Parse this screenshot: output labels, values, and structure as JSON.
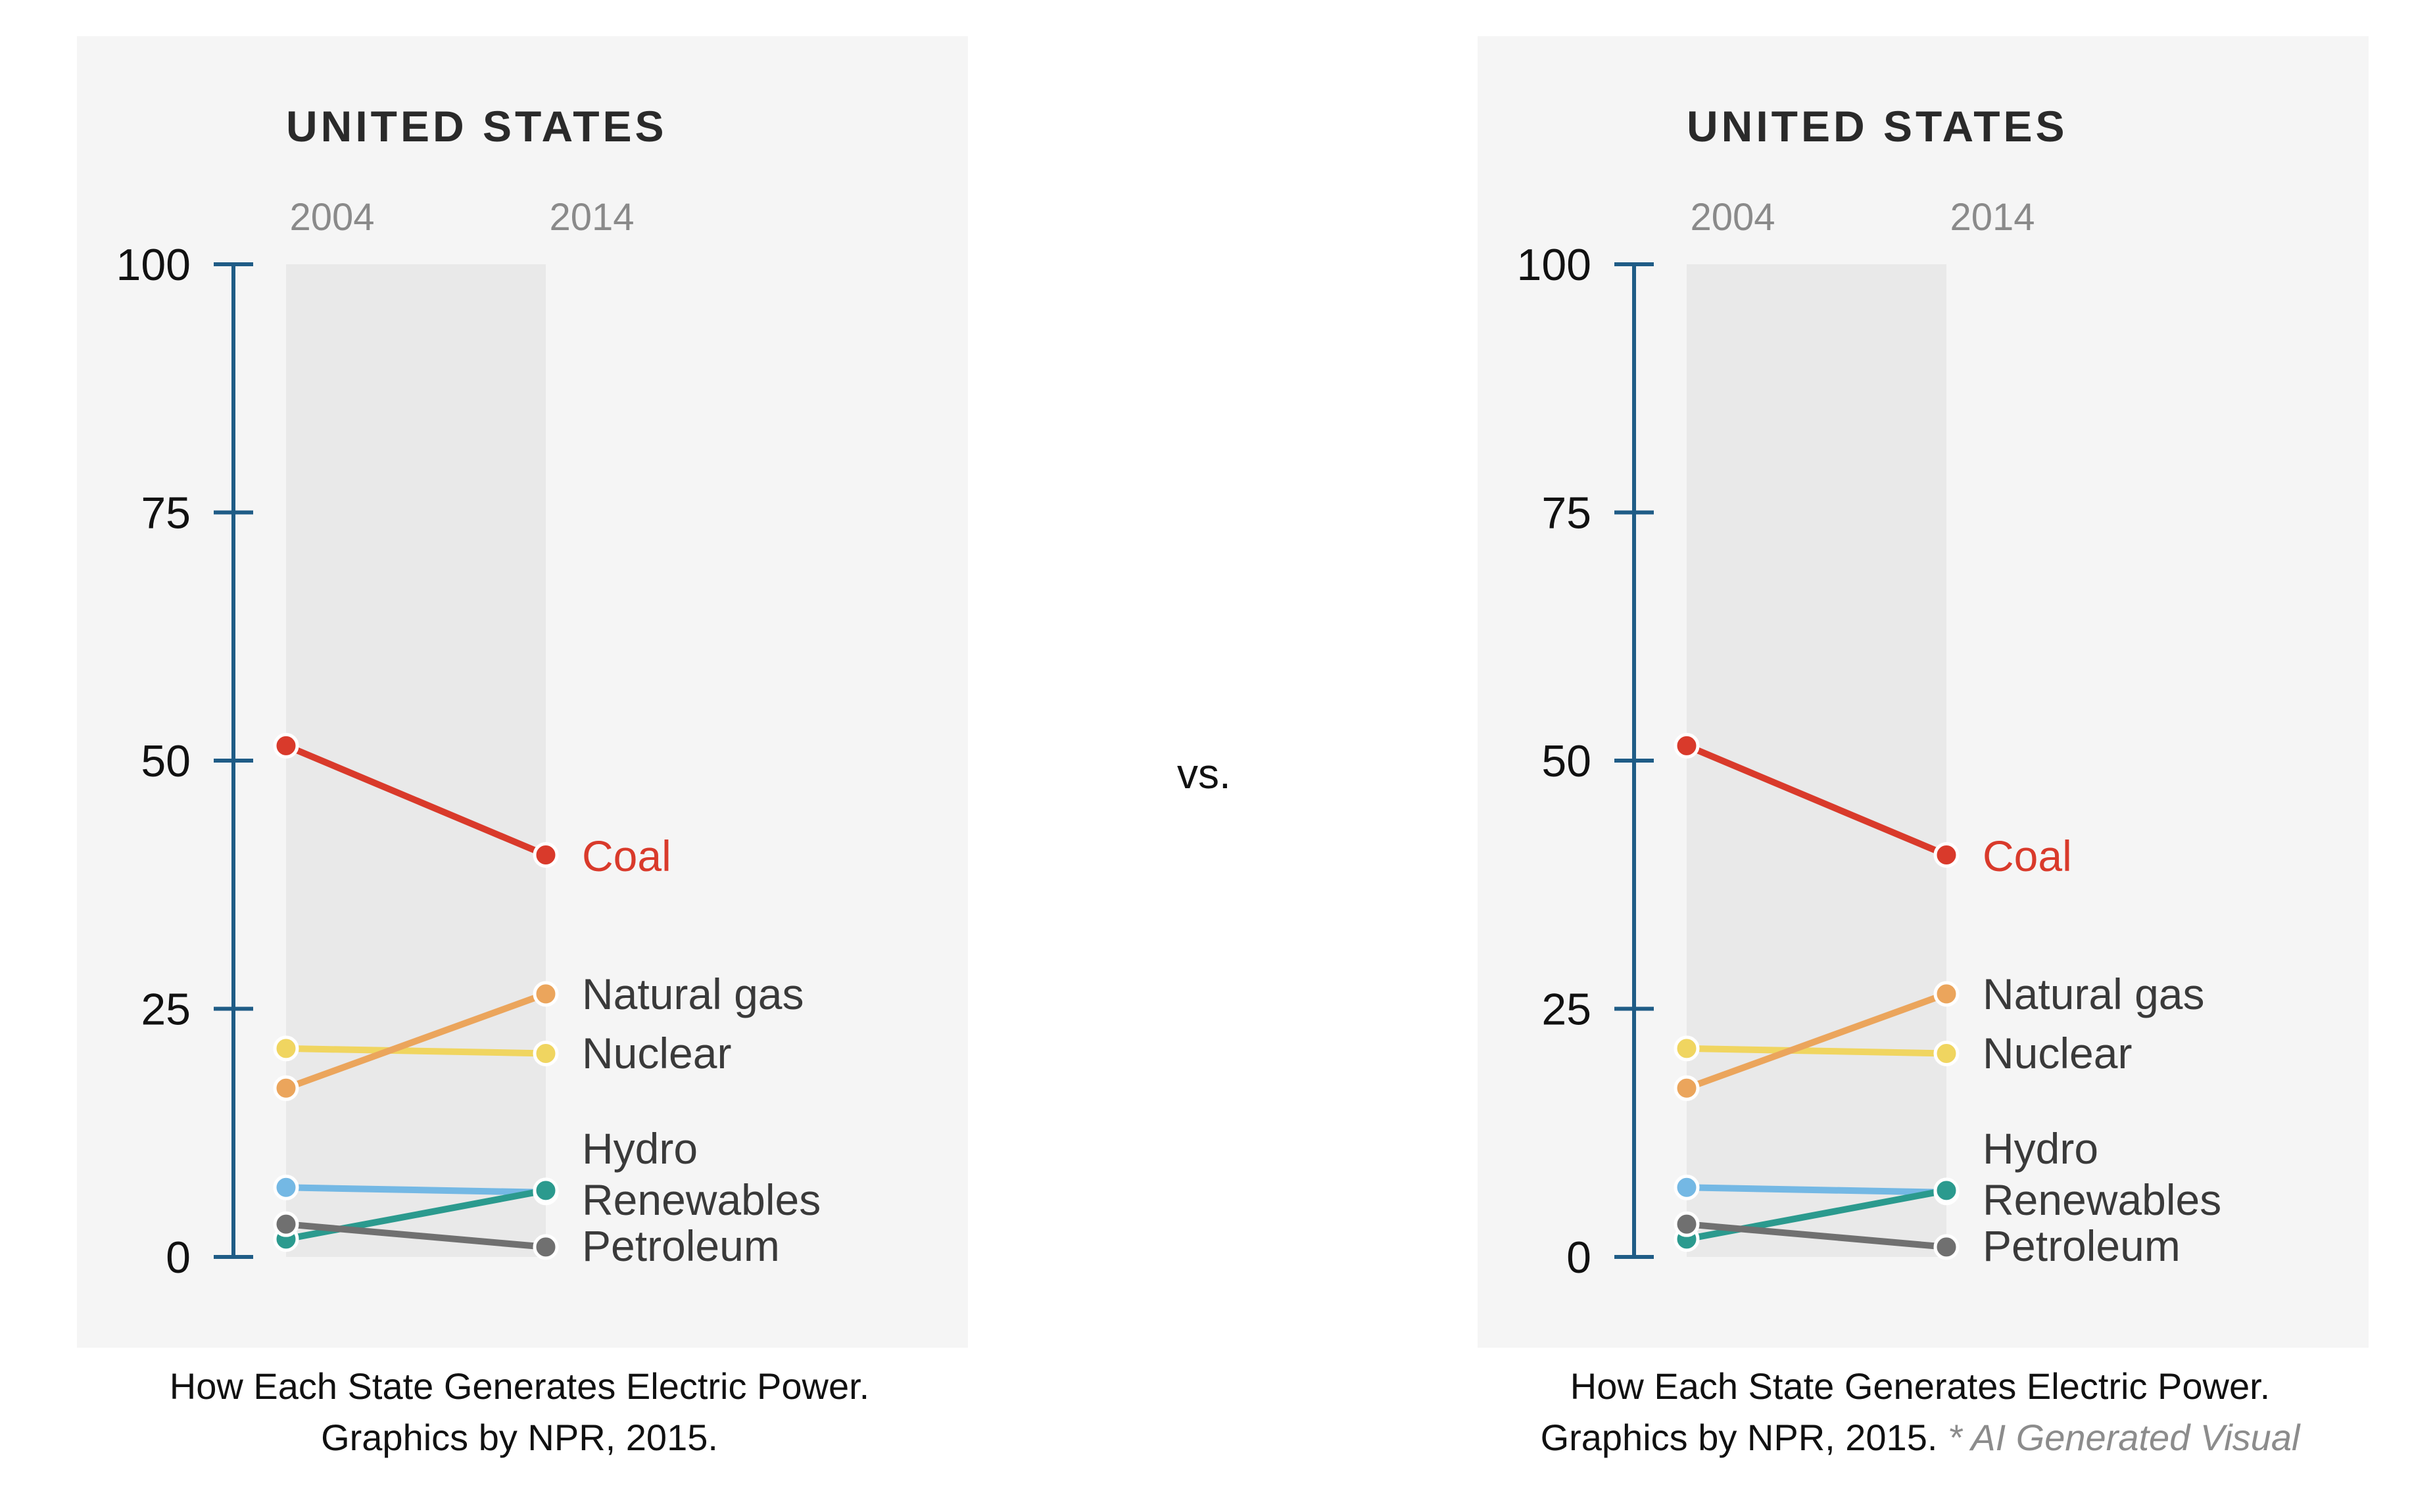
{
  "separator": "vs.",
  "colors": {
    "panel_bg": "#f5f5f5",
    "band_bg": "#e9e9e9",
    "axis": "#1f5c86",
    "coal": "#d93a2b",
    "natural_gas": "#eba55c",
    "nuclear": "#f0d560",
    "hydro": "#74b8e4",
    "renewables": "#2b9a8e",
    "petroleum": "#707070"
  },
  "chart_data": [
    {
      "type": "line",
      "title": "UNITED STATES",
      "x": [
        "2004",
        "2014"
      ],
      "ylim": [
        0,
        100
      ],
      "yticks": [
        0,
        25,
        50,
        75,
        100
      ],
      "series": [
        {
          "name": "Coal",
          "values": [
            51.5,
            40.5
          ],
          "color": "#d93a2b"
        },
        {
          "name": "Natural gas",
          "values": [
            17,
            26.5
          ],
          "color": "#eba55c"
        },
        {
          "name": "Nuclear",
          "values": [
            21,
            20.5
          ],
          "color": "#f0d560"
        },
        {
          "name": "Hydro",
          "values": [
            7,
            6.5
          ],
          "color": "#74b8e4"
        },
        {
          "name": "Renewables",
          "values": [
            1.8,
            6.7
          ],
          "color": "#2b9a8e"
        },
        {
          "name": "Petroleum",
          "values": [
            3.3,
            1.0
          ],
          "color": "#707070"
        }
      ],
      "caption": {
        "line1": "How Each State Generates Electric Power.",
        "line2": "Graphics by NPR, 2015."
      }
    },
    {
      "type": "line",
      "title": "UNITED STATES",
      "x": [
        "2004",
        "2014"
      ],
      "ylim": [
        0,
        100
      ],
      "yticks": [
        0,
        25,
        50,
        75,
        100
      ],
      "series": [
        {
          "name": "Coal",
          "values": [
            51.5,
            40.5
          ],
          "color": "#d93a2b"
        },
        {
          "name": "Natural gas",
          "values": [
            17,
            26.5
          ],
          "color": "#eba55c"
        },
        {
          "name": "Nuclear",
          "values": [
            21,
            20.5
          ],
          "color": "#f0d560"
        },
        {
          "name": "Hydro",
          "values": [
            7,
            6.5
          ],
          "color": "#74b8e4"
        },
        {
          "name": "Renewables",
          "values": [
            1.8,
            6.7
          ],
          "color": "#2b9a8e"
        },
        {
          "name": "Petroleum",
          "values": [
            3.3,
            1.0
          ],
          "color": "#707070"
        }
      ],
      "caption": {
        "line1": "How Each State Generates Electric Power.",
        "line2": "Graphics by NPR, 2015.",
        "note": "* AI Generated Visual"
      }
    }
  ]
}
